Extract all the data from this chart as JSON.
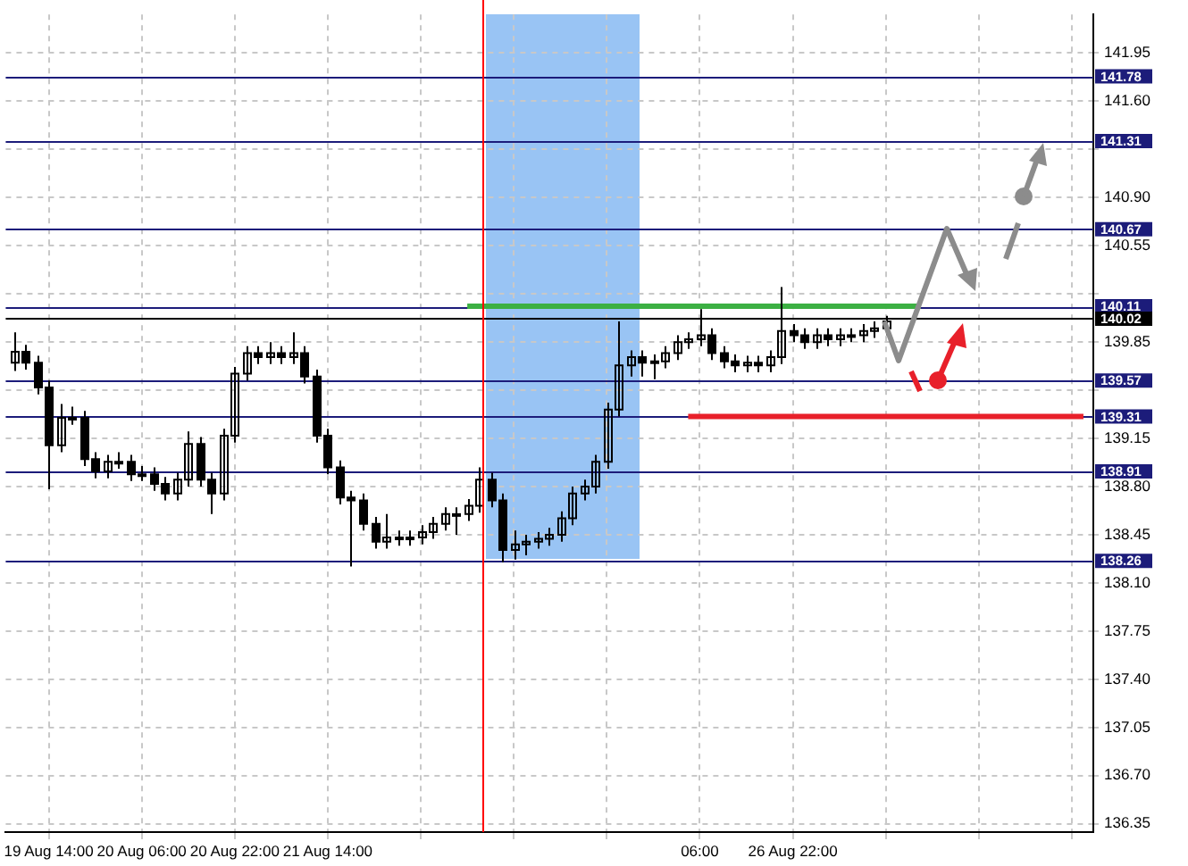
{
  "chart_data": {
    "type": "candlestick",
    "categories": [
      null,
      null,
      null,
      "19 Aug 14:00",
      null,
      null,
      null,
      null,
      null,
      null,
      null,
      "20 Aug 06:00",
      null,
      null,
      null,
      null,
      null,
      null,
      null,
      "20 Aug 22:00",
      null,
      null,
      null,
      null,
      null,
      null,
      null,
      "21 Aug 14:00",
      null,
      null,
      null,
      null,
      null,
      null,
      null,
      null,
      null,
      null,
      null,
      null,
      null,
      null,
      null,
      null,
      null,
      null,
      null,
      null,
      null,
      null,
      null,
      null,
      null,
      null,
      null,
      null,
      null,
      null,
      null,
      "06:00",
      null,
      null,
      null,
      null,
      null,
      null,
      null,
      "26 Aug 22:00",
      null,
      null,
      null,
      null,
      null,
      null,
      null,
      null,
      null,
      null,
      null,
      null,
      null,
      null,
      null,
      null,
      null,
      null,
      null,
      null,
      null,
      null,
      null,
      null,
      null
    ],
    "series": [
      {
        "color": "#000000",
        "ohlc": [
          [
            139.7,
            139.92,
            139.64,
            139.78
          ],
          [
            139.78,
            139.83,
            139.65,
            139.7
          ],
          [
            139.7,
            139.75,
            139.47,
            139.52
          ],
          [
            139.52,
            139.57,
            138.78,
            139.1
          ],
          [
            139.1,
            139.4,
            139.05,
            139.3
          ],
          [
            139.3,
            139.38,
            139.25,
            139.3
          ],
          [
            139.3,
            139.35,
            138.95,
            139.0
          ],
          [
            139.0,
            139.05,
            138.86,
            138.91
          ],
          [
            138.91,
            139.03,
            138.86,
            138.98
          ],
          [
            138.98,
            139.05,
            138.93,
            138.98
          ],
          [
            138.98,
            139.03,
            138.84,
            138.89
          ],
          [
            138.89,
            138.95,
            138.84,
            138.89
          ],
          [
            138.89,
            138.94,
            138.77,
            138.82
          ],
          [
            138.82,
            138.87,
            138.7,
            138.75
          ],
          [
            138.75,
            138.9,
            138.7,
            138.85
          ],
          [
            138.85,
            139.2,
            138.8,
            139.11
          ],
          [
            139.11,
            139.16,
            138.8,
            138.85
          ],
          [
            138.85,
            138.9,
            138.6,
            138.75
          ],
          [
            138.75,
            139.22,
            138.7,
            139.17
          ],
          [
            139.17,
            139.67,
            139.12,
            139.62
          ],
          [
            139.62,
            139.82,
            139.57,
            139.77
          ],
          [
            139.77,
            139.82,
            139.69,
            139.74
          ],
          [
            139.74,
            139.85,
            139.69,
            139.77
          ],
          [
            139.77,
            139.82,
            139.69,
            139.74
          ],
          [
            139.74,
            139.92,
            139.69,
            139.77
          ],
          [
            139.77,
            139.82,
            139.55,
            139.6
          ],
          [
            139.6,
            139.65,
            139.12,
            139.17
          ],
          [
            139.17,
            139.22,
            138.89,
            138.94
          ],
          [
            138.94,
            138.99,
            138.67,
            138.72
          ],
          [
            138.72,
            138.77,
            138.22,
            138.7
          ],
          [
            138.7,
            138.75,
            138.48,
            138.53
          ],
          [
            138.53,
            138.58,
            138.35,
            138.4
          ],
          [
            138.4,
            138.6,
            138.35,
            138.43
          ],
          [
            138.43,
            138.48,
            138.37,
            138.42
          ],
          [
            138.42,
            138.48,
            138.37,
            138.43
          ],
          [
            138.43,
            138.52,
            138.38,
            138.47
          ],
          [
            138.47,
            138.58,
            138.42,
            138.53
          ],
          [
            138.53,
            138.65,
            138.48,
            138.6
          ],
          [
            138.6,
            138.65,
            138.45,
            138.6
          ],
          [
            138.6,
            138.71,
            138.55,
            138.66
          ],
          [
            138.66,
            138.94,
            138.61,
            138.85
          ],
          [
            138.85,
            138.9,
            138.65,
            138.7
          ],
          [
            138.7,
            138.75,
            138.25,
            138.34
          ],
          [
            138.34,
            138.48,
            138.27,
            138.38
          ],
          [
            138.38,
            138.45,
            138.3,
            138.4
          ],
          [
            138.4,
            138.47,
            138.35,
            138.42
          ],
          [
            138.42,
            138.5,
            138.37,
            138.45
          ],
          [
            138.45,
            138.62,
            138.4,
            138.57
          ],
          [
            138.57,
            138.8,
            138.52,
            138.75
          ],
          [
            138.75,
            138.85,
            138.7,
            138.8
          ],
          [
            138.8,
            139.03,
            138.75,
            138.98
          ],
          [
            138.98,
            139.41,
            138.93,
            139.36
          ],
          [
            139.36,
            140.0,
            139.31,
            139.68
          ],
          [
            139.68,
            139.79,
            139.6,
            139.74
          ],
          [
            139.74,
            139.79,
            139.6,
            139.7
          ],
          [
            139.7,
            139.76,
            139.58,
            139.71
          ],
          [
            139.71,
            139.82,
            139.66,
            139.77
          ],
          [
            139.77,
            139.9,
            139.72,
            139.85
          ],
          [
            139.85,
            139.92,
            139.8,
            139.87
          ],
          [
            139.87,
            140.09,
            139.82,
            139.9
          ],
          [
            139.9,
            139.95,
            139.72,
            139.77
          ],
          [
            139.77,
            139.82,
            139.66,
            139.71
          ],
          [
            139.71,
            139.76,
            139.63,
            139.68
          ],
          [
            139.68,
            139.75,
            139.63,
            139.7
          ],
          [
            139.7,
            139.75,
            139.63,
            139.68
          ],
          [
            139.68,
            139.79,
            139.63,
            139.74
          ],
          [
            139.74,
            140.25,
            139.69,
            139.93
          ],
          [
            139.93,
            139.98,
            139.85,
            139.9
          ],
          [
            139.9,
            139.95,
            139.8,
            139.85
          ],
          [
            139.85,
            139.95,
            139.8,
            139.9
          ],
          [
            139.9,
            139.95,
            139.82,
            139.87
          ],
          [
            139.87,
            139.95,
            139.82,
            139.9
          ],
          [
            139.9,
            139.95,
            139.85,
            139.9
          ],
          [
            139.9,
            139.98,
            139.85,
            139.93
          ],
          [
            139.93,
            140.0,
            139.88,
            139.95
          ],
          [
            139.95,
            140.04,
            139.9,
            140.0
          ],
          null,
          null,
          null,
          null,
          null,
          null,
          null,
          null,
          null,
          null,
          null,
          null,
          null,
          null,
          null,
          null,
          null
        ]
      },
      {
        "type": "line",
        "color": "#3cb043",
        "values": [
          null,
          null,
          null,
          null,
          null,
          null,
          null,
          null,
          null,
          null,
          null,
          null,
          null,
          null,
          null,
          null,
          null,
          null,
          null,
          null,
          null,
          null,
          null,
          null,
          null,
          null,
          null,
          null,
          null,
          null,
          null,
          null,
          null,
          null,
          null,
          null,
          null,
          null,
          null,
          140.11,
          null,
          null,
          null,
          null,
          null,
          null,
          null,
          null,
          null,
          null,
          null,
          null,
          null,
          null,
          null,
          null,
          null,
          null,
          null,
          null,
          null,
          null,
          null,
          null,
          null,
          null,
          null,
          null,
          null,
          null,
          null,
          null,
          null,
          null,
          null,
          null,
          null,
          null,
          140.11,
          null,
          null,
          null,
          null,
          null,
          null,
          null,
          null,
          null,
          null,
          null,
          null,
          null,
          null
        ]
      },
      {
        "type": "line",
        "color": "#e8202a",
        "values": [
          null,
          null,
          null,
          null,
          null,
          null,
          null,
          null,
          null,
          null,
          null,
          null,
          null,
          null,
          null,
          null,
          null,
          null,
          null,
          null,
          null,
          null,
          null,
          null,
          null,
          null,
          null,
          null,
          null,
          null,
          null,
          null,
          null,
          null,
          null,
          null,
          null,
          null,
          null,
          null,
          null,
          null,
          null,
          null,
          null,
          null,
          null,
          null,
          null,
          null,
          null,
          null,
          null,
          null,
          null,
          null,
          null,
          null,
          139.31,
          null,
          null,
          null,
          null,
          null,
          null,
          null,
          null,
          null,
          null,
          null,
          null,
          null,
          null,
          null,
          null,
          null,
          null,
          null,
          null,
          null,
          null,
          null,
          null,
          null,
          null,
          null,
          null,
          null,
          null,
          null,
          null,
          null,
          139.31
        ]
      }
    ],
    "ylim": [
      136.29,
      142.23
    ],
    "yticks": [
      141.95,
      {
        "value": 141.6,
        "label": "141.60"
      },
      {
        "value": 141.25,
        "label": null
      },
      {
        "value": 140.9,
        "label": "140.90"
      },
      140.55,
      {
        "value": 140.2,
        "label": null
      },
      139.85,
      {
        "value": 139.5,
        "label": null
      },
      139.15,
      {
        "value": 138.8,
        "label": "138.80"
      },
      138.45,
      {
        "value": 138.1,
        "label": "138.10"
      },
      137.75,
      {
        "value": 137.4,
        "label": "137.40"
      },
      137.05,
      {
        "value": 136.7,
        "label": "136.70"
      },
      136.35
    ],
    "grid": true,
    "legend": false,
    "marker": "none",
    "ref_lines": [
      {
        "axis": "y",
        "value": 141.78,
        "label": "141.78",
        "color": "#1c1c7a"
      },
      {
        "axis": "y",
        "value": 141.31,
        "label": "141.31",
        "color": "#1c1c7a"
      },
      {
        "axis": "y",
        "value": 140.67,
        "label": "140.67",
        "color": "#1c1c7a"
      },
      {
        "axis": "y",
        "value": 140.11,
        "label": "140.11",
        "color": "#1c1c7a"
      },
      {
        "axis": "y",
        "value": 140.02,
        "label": "140.02",
        "color": "#000000"
      },
      {
        "axis": "y",
        "value": 139.57,
        "label": "139.57",
        "color": "#1c1c7a"
      },
      {
        "axis": "y",
        "value": 139.31,
        "label": "139.31",
        "color": "#1c1c7a"
      },
      {
        "axis": "y",
        "value": 138.91,
        "label": "138.91",
        "color": "#1c1c7a"
      },
      {
        "axis": "y",
        "value": 138.26,
        "label": "138.26",
        "color": "#1c1c7a"
      }
    ]
  }
}
